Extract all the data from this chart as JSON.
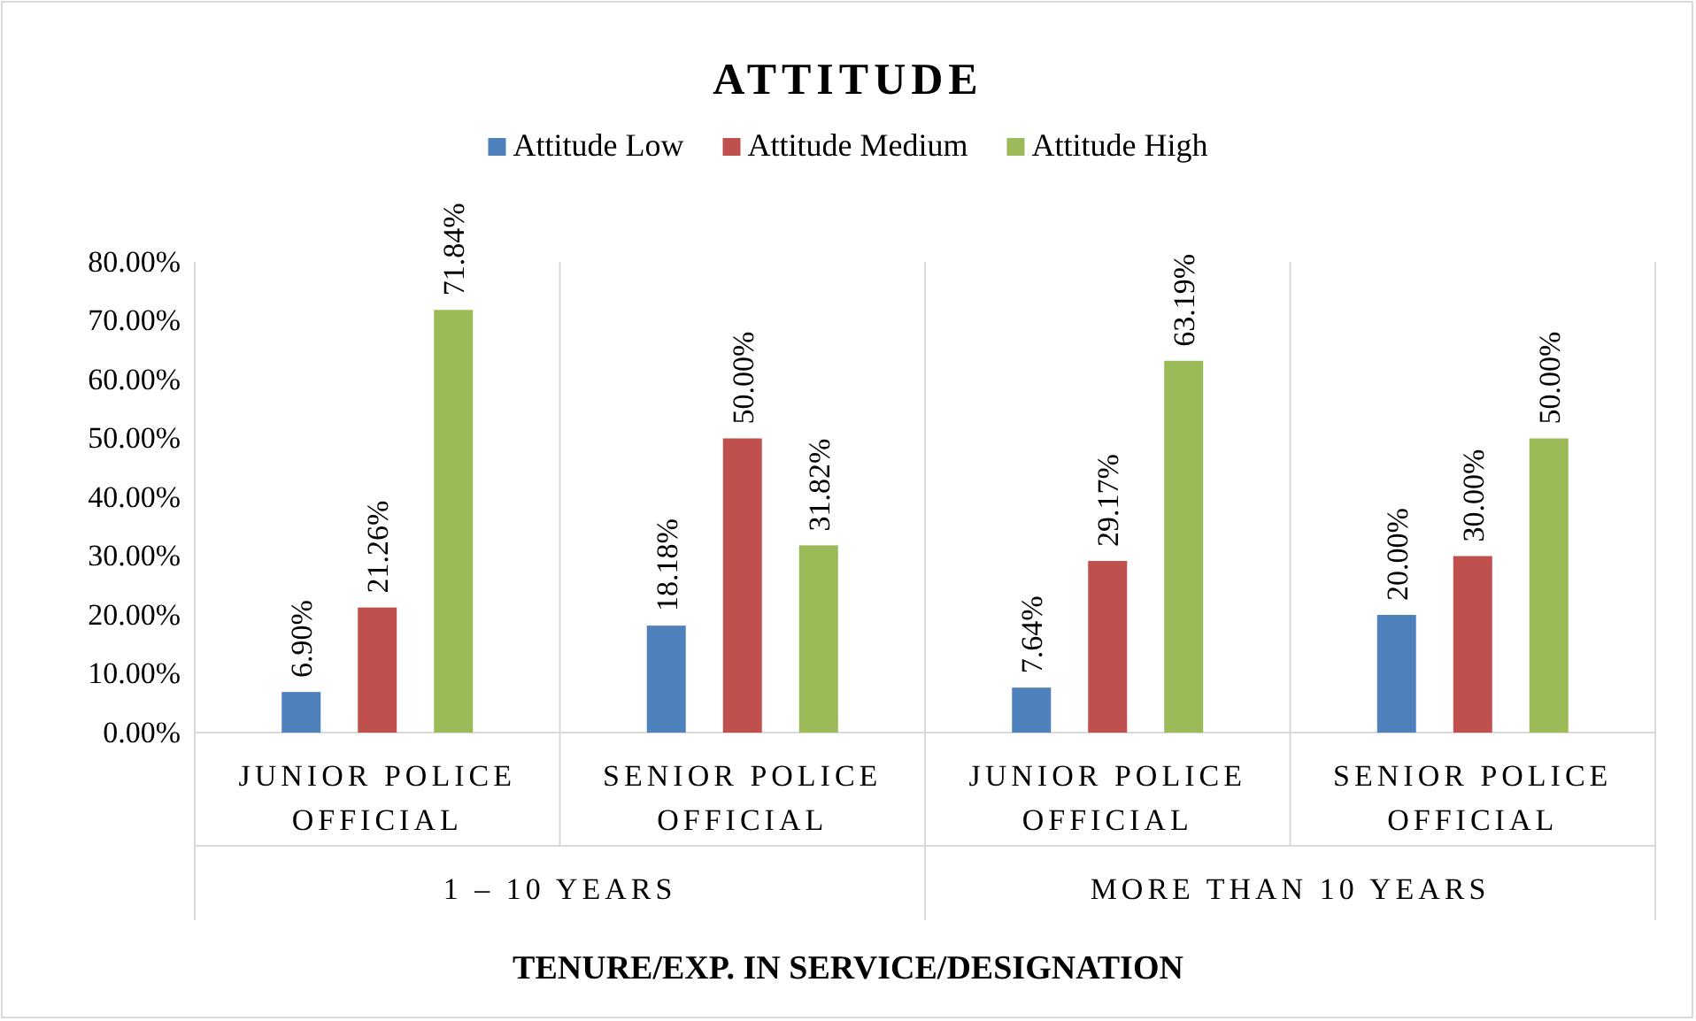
{
  "chart_data": {
    "type": "bar",
    "title": "ATTITUDE",
    "xlabel": "TENURE/EXP. IN SERVICE/DESIGNATION",
    "categories": [
      "JUNIOR POLICE OFFICIAL",
      "SENIOR POLICE OFFICIAL",
      "JUNIOR POLICE OFFICIAL",
      "SENIOR POLICE OFFICIAL"
    ],
    "annotations": [
      "1 – 10 YEARS",
      "MORE THAN 10 YEARS"
    ],
    "series": [
      {
        "name": "Attitude Low",
        "color": "#4f81bd",
        "values": [
          6.9,
          18.18,
          7.64,
          20.0
        ],
        "value_labels": [
          "6.90%",
          "18.18%",
          "7.64%",
          "20.00%"
        ]
      },
      {
        "name": "Attitude Medium",
        "color": "#c0504d",
        "values": [
          21.26,
          50.0,
          29.17,
          30.0
        ],
        "value_labels": [
          "21.26%",
          "50.00%",
          "29.17%",
          "30.00%"
        ]
      },
      {
        "name": "Attitude High",
        "color": "#9bbb59",
        "values": [
          71.84,
          31.82,
          63.19,
          50.0
        ],
        "value_labels": [
          "71.84%",
          "31.82%",
          "63.19%",
          "50.00%"
        ]
      }
    ],
    "ylim": [
      0,
      80
    ],
    "yticks": [
      {
        "value": 0,
        "label": "0.00%"
      },
      {
        "value": 10,
        "label": "10.00%"
      },
      {
        "value": 20,
        "label": "20.00%"
      },
      {
        "value": 30,
        "label": "30.00%"
      },
      {
        "value": 40,
        "label": "40.00%"
      },
      {
        "value": 50,
        "label": "50.00%"
      },
      {
        "value": 60,
        "label": "60.00%"
      },
      {
        "value": 70,
        "label": "70.00%"
      },
      {
        "value": 80,
        "label": "80.00%"
      }
    ],
    "grid": false,
    "legend": "top"
  }
}
